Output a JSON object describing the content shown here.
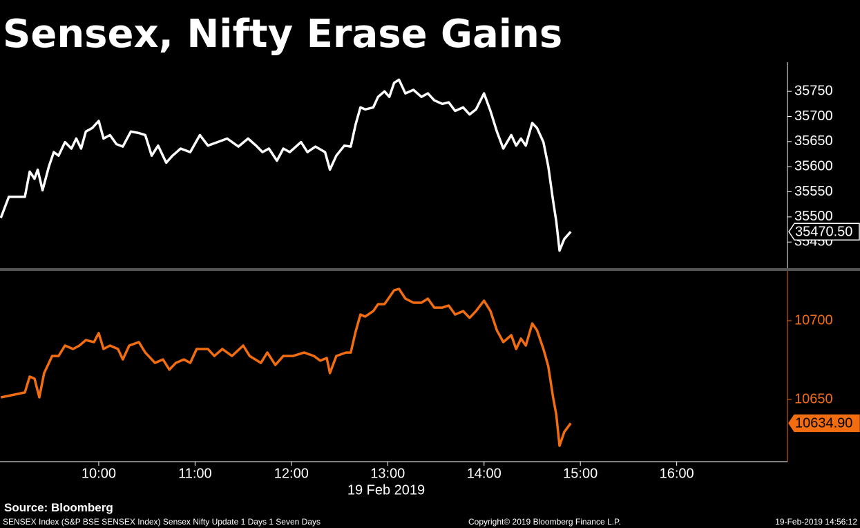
{
  "title": "Sensex, Nifty Erase Gains",
  "source": "Source: Bloomberg",
  "footer": {
    "description": "SENSEX Index (S&P BSE SENSEX Index) Sensex Nifty Update 1 Days 1 Seven Days",
    "copyright": "Copyright© 2019 Bloomberg Finance L.P.",
    "timestamp": "19-Feb-2019 14:56:12"
  },
  "chart_data": [
    {
      "type": "line",
      "color": "#ffffff",
      "xlim": [
        538.5,
        1029
      ],
      "ylim": [
        35398,
        35808
      ],
      "yticks": [
        35450,
        35500,
        35550,
        35600,
        35650,
        35700,
        35750
      ],
      "last_value_label": "35470.50",
      "x": [
        539,
        544,
        554,
        557,
        560,
        562,
        565,
        569,
        572,
        575,
        579,
        583,
        586,
        589,
        592,
        596,
        600,
        603,
        607,
        611,
        615,
        620,
        625,
        629,
        633,
        637,
        642,
        646,
        651,
        657,
        663,
        668,
        674,
        680,
        687,
        693,
        698,
        702,
        706,
        711,
        715,
        719,
        726,
        730,
        735,
        741,
        744,
        748,
        753,
        757,
        760,
        763,
        766,
        771,
        774,
        778,
        781,
        784,
        787,
        791,
        796,
        801,
        805,
        809,
        814,
        818,
        822,
        827,
        831,
        835,
        840,
        844,
        848,
        852,
        857,
        860,
        863,
        866,
        870,
        873,
        877,
        880,
        883,
        885,
        887,
        890,
        894
      ],
      "values": [
        35498,
        35540,
        35540,
        35590,
        35576,
        35594,
        35553,
        35601,
        35629,
        35622,
        35649,
        35636,
        35656,
        35636,
        35670,
        35677,
        35691,
        35656,
        35663,
        35645,
        35640,
        35670,
        35667,
        35663,
        35622,
        35642,
        35608,
        35622,
        35636,
        35629,
        35663,
        35642,
        35649,
        35656,
        35640,
        35656,
        35642,
        35629,
        35636,
        35612,
        35636,
        35629,
        35649,
        35629,
        35640,
        35629,
        35594,
        35622,
        35642,
        35640,
        35684,
        35718,
        35714,
        35718,
        35739,
        35750,
        35739,
        35767,
        35773,
        35746,
        35753,
        35739,
        35746,
        35732,
        35725,
        35728,
        35711,
        35718,
        35704,
        35714,
        35746,
        35711,
        35670,
        35636,
        35663,
        35642,
        35656,
        35642,
        35687,
        35677,
        35649,
        35601,
        35532,
        35491,
        35433,
        35456,
        35470.5
      ]
    },
    {
      "type": "line",
      "color": "#f26c10",
      "xlim": [
        538.5,
        1029
      ],
      "ylim": [
        10610.5,
        10731.6
      ],
      "yticks": [
        10650,
        10700
      ],
      "last_value_label": "10634.90",
      "xticks": [
        {
          "value": 600,
          "label": "10:00"
        },
        {
          "value": 660,
          "label": "11:00"
        },
        {
          "value": 720,
          "label": "12:00"
        },
        {
          "value": 780,
          "label": "13:00"
        },
        {
          "value": 840,
          "label": "14:00"
        },
        {
          "value": 900,
          "label": "15:00"
        },
        {
          "value": 960,
          "label": "16:00"
        }
      ],
      "x_label": "19 Feb 2019",
      "x": [
        539,
        554,
        557,
        560,
        563,
        566,
        571,
        575,
        579,
        584,
        588,
        592,
        597,
        600,
        603,
        607,
        612,
        615,
        619,
        625,
        629,
        635,
        640,
        644,
        648,
        653,
        657,
        661,
        668,
        672,
        677,
        683,
        690,
        694,
        701,
        705,
        710,
        715,
        721,
        728,
        734,
        738,
        742,
        744,
        748,
        754,
        757,
        760,
        763,
        766,
        771,
        774,
        778,
        781,
        784,
        787,
        791,
        796,
        801,
        805,
        809,
        814,
        818,
        822,
        827,
        831,
        835,
        840,
        844,
        848,
        852,
        857,
        860,
        863,
        866,
        870,
        873,
        877,
        880,
        883,
        885,
        887,
        890,
        894
      ],
      "values": [
        10651.3,
        10654.4,
        10664.5,
        10663.2,
        10651.3,
        10666.7,
        10677.6,
        10677.6,
        10684.2,
        10682.0,
        10684.2,
        10687.7,
        10686.4,
        10692.1,
        10682.0,
        10684.2,
        10682.0,
        10675.4,
        10684.2,
        10686.4,
        10679.8,
        10673.2,
        10675.4,
        10668.9,
        10673.2,
        10675.4,
        10673.2,
        10682.0,
        10682.0,
        10677.6,
        10682.0,
        10677.6,
        10684.2,
        10677.6,
        10673.2,
        10679.8,
        10671.9,
        10677.6,
        10677.6,
        10679.8,
        10677.6,
        10674.6,
        10676.3,
        10666.7,
        10677.6,
        10679.8,
        10679.8,
        10693.0,
        10703.9,
        10702.6,
        10706.1,
        10710.5,
        10710.5,
        10714.9,
        10719.3,
        10720.2,
        10714.0,
        10711.4,
        10711.4,
        10714.0,
        10708.3,
        10708.3,
        10709.6,
        10703.9,
        10706.1,
        10701.8,
        10706.1,
        10712.7,
        10706.1,
        10693.9,
        10686.4,
        10690.8,
        10682.0,
        10688.6,
        10684.2,
        10698.2,
        10693.9,
        10682.0,
        10671.1,
        10651.3,
        10640.4,
        10620.6,
        10629.4,
        10634.9
      ]
    }
  ]
}
